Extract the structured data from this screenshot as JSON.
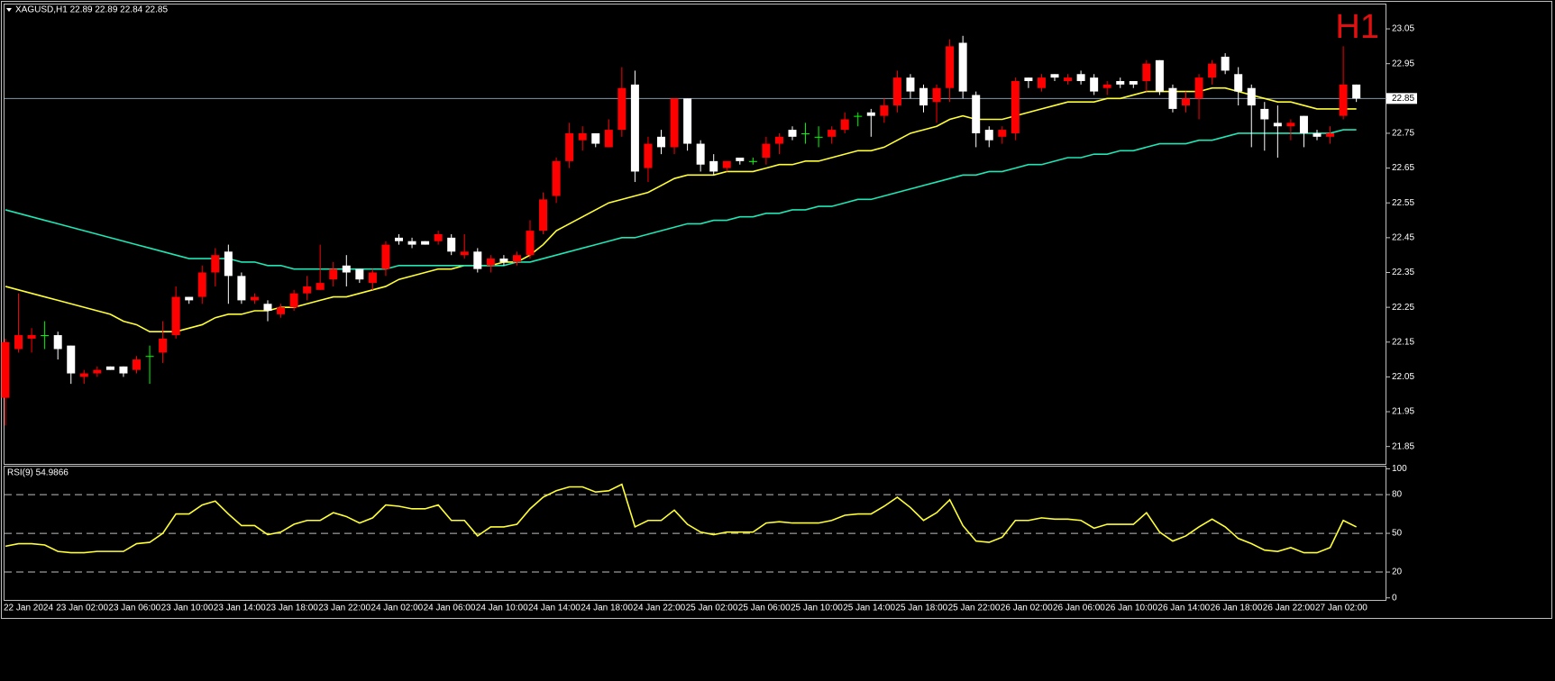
{
  "chart_data": [
    {
      "type": "candlestick",
      "title": "XAGUSD,H1  22.89 22.89 22.84 22.85",
      "badge": "H1",
      "categories": [
        "22 Jan 2024",
        null,
        null,
        null,
        "23 Jan 02:00",
        null,
        null,
        null,
        "23 Jan 06:00",
        null,
        null,
        null,
        "23 Jan 10:00",
        null,
        null,
        null,
        "23 Jan 14:00",
        null,
        null,
        null,
        "23 Jan 18:00",
        null,
        null,
        null,
        "23 Jan 22:00",
        null,
        null,
        null,
        "24 Jan 02:00",
        null,
        null,
        null,
        "24 Jan 06:00",
        null,
        null,
        null,
        "24 Jan 10:00",
        null,
        null,
        null,
        "24 Jan 14:00",
        null,
        null,
        null,
        "24 Jan 18:00",
        null,
        null,
        null,
        "24 Jan 22:00",
        null,
        null,
        null,
        "25 Jan 02:00",
        null,
        null,
        null,
        "25 Jan 06:00",
        null,
        null,
        null,
        "25 Jan 10:00",
        null,
        null,
        null,
        "25 Jan 14:00",
        null,
        null,
        null,
        "25 Jan 18:00",
        null,
        null,
        null,
        "25 Jan 22:00",
        null,
        null,
        null,
        "26 Jan 02:00",
        null,
        null,
        null,
        "26 Jan 06:00",
        null,
        null,
        null,
        "26 Jan 10:00",
        null,
        null,
        null,
        "26 Jan 14:00",
        null,
        null,
        null,
        "26 Jan 18:00",
        null,
        null,
        null,
        "26 Jan 22:00",
        null,
        null,
        null,
        "27 Jan 02:00",
        null,
        null,
        null
      ],
      "open": [
        21.99,
        22.13,
        22.16,
        22.17,
        22.17,
        22.14,
        22.05,
        22.06,
        22.08,
        22.08,
        22.07,
        22.11,
        22.12,
        22.17,
        22.28,
        22.28,
        22.35,
        22.41,
        22.34,
        22.27,
        22.26,
        22.23,
        22.25,
        22.29,
        22.3,
        22.33,
        22.37,
        22.36,
        22.32,
        22.36,
        22.45,
        22.44,
        22.44,
        22.44,
        22.45,
        22.4,
        22.41,
        22.37,
        22.39,
        22.38,
        22.4,
        22.47,
        22.57,
        22.67,
        22.73,
        22.75,
        22.71,
        22.76,
        22.89,
        22.65,
        22.74,
        22.71,
        22.85,
        22.72,
        22.67,
        22.65,
        22.68,
        22.67,
        22.68,
        22.72,
        22.76,
        22.75,
        22.74,
        22.74,
        22.76,
        22.8,
        22.81,
        22.8,
        22.83,
        22.91,
        22.88,
        22.84,
        22.88,
        23.01,
        22.86,
        22.76,
        22.74,
        22.75,
        22.91,
        22.88,
        22.92,
        22.9,
        22.92,
        22.91,
        22.88,
        22.9,
        22.9,
        22.9,
        22.96,
        22.88,
        22.83,
        22.85,
        22.91,
        22.97,
        22.92,
        22.88,
        22.82,
        22.78,
        22.77,
        22.8,
        22.75,
        22.74,
        22.8,
        22.89
      ],
      "high": [
        22.16,
        22.29,
        22.19,
        22.21,
        22.18,
        22.14,
        22.07,
        22.08,
        22.08,
        22.08,
        22.11,
        22.14,
        22.21,
        22.31,
        22.28,
        22.37,
        22.42,
        22.43,
        22.35,
        22.29,
        22.27,
        22.26,
        22.3,
        22.34,
        22.43,
        22.38,
        22.4,
        22.36,
        22.36,
        22.44,
        22.46,
        22.45,
        22.44,
        22.47,
        22.46,
        22.46,
        22.42,
        22.4,
        22.4,
        22.41,
        22.5,
        22.58,
        22.68,
        22.78,
        22.77,
        22.75,
        22.79,
        22.94,
        22.93,
        22.74,
        22.76,
        22.85,
        22.85,
        22.73,
        22.69,
        22.67,
        22.68,
        22.68,
        22.74,
        22.75,
        22.77,
        22.78,
        22.77,
        22.77,
        22.81,
        22.81,
        22.82,
        22.85,
        22.93,
        22.92,
        22.89,
        22.89,
        23.02,
        23.03,
        22.87,
        22.77,
        22.77,
        22.91,
        22.91,
        22.92,
        22.92,
        22.92,
        22.93,
        22.92,
        22.9,
        22.91,
        22.9,
        22.96,
        22.96,
        22.89,
        22.87,
        22.92,
        22.96,
        22.98,
        22.94,
        22.89,
        22.84,
        22.83,
        22.79,
        22.8,
        22.76,
        22.77,
        23.0,
        22.89
      ],
      "low": [
        21.91,
        22.12,
        22.12,
        22.13,
        22.1,
        22.03,
        22.03,
        22.05,
        22.07,
        22.05,
        22.06,
        22.03,
        22.09,
        22.16,
        22.26,
        22.26,
        22.31,
        22.26,
        22.26,
        22.26,
        22.21,
        22.22,
        22.24,
        22.27,
        22.3,
        22.31,
        22.31,
        22.32,
        22.3,
        22.34,
        22.43,
        22.42,
        22.43,
        22.43,
        22.4,
        22.39,
        22.35,
        22.35,
        22.37,
        22.37,
        22.39,
        22.46,
        22.55,
        22.65,
        22.7,
        22.71,
        22.71,
        22.74,
        22.61,
        22.61,
        22.69,
        22.69,
        22.7,
        22.64,
        22.63,
        22.64,
        22.66,
        22.66,
        22.66,
        22.69,
        22.73,
        22.72,
        22.71,
        22.72,
        22.75,
        22.77,
        22.74,
        22.78,
        22.81,
        22.85,
        22.81,
        22.78,
        22.84,
        22.85,
        22.71,
        22.71,
        22.72,
        22.73,
        22.88,
        22.87,
        22.9,
        22.89,
        22.89,
        22.86,
        22.86,
        22.88,
        22.88,
        22.87,
        22.86,
        22.81,
        22.81,
        22.79,
        22.89,
        22.92,
        22.83,
        22.71,
        22.7,
        22.68,
        22.73,
        22.71,
        22.73,
        22.72,
        22.79,
        22.84
      ],
      "close": [
        22.15,
        22.17,
        22.17,
        22.17,
        22.13,
        22.06,
        22.06,
        22.07,
        22.07,
        22.06,
        22.1,
        22.11,
        22.16,
        22.28,
        22.27,
        22.35,
        22.4,
        22.34,
        22.27,
        22.28,
        22.24,
        22.25,
        22.29,
        22.31,
        22.32,
        22.36,
        22.35,
        22.33,
        22.35,
        22.43,
        22.44,
        22.43,
        22.43,
        22.46,
        22.41,
        22.41,
        22.36,
        22.39,
        22.38,
        22.4,
        22.47,
        22.56,
        22.67,
        22.75,
        22.75,
        22.72,
        22.76,
        22.88,
        22.64,
        22.72,
        22.71,
        22.85,
        22.72,
        22.66,
        22.64,
        22.67,
        22.67,
        22.67,
        22.72,
        22.74,
        22.74,
        22.75,
        22.74,
        22.76,
        22.79,
        22.8,
        22.8,
        22.83,
        22.91,
        22.87,
        22.83,
        22.88,
        23.0,
        22.87,
        22.75,
        22.73,
        22.76,
        22.9,
        22.9,
        22.91,
        22.91,
        22.91,
        22.9,
        22.87,
        22.89,
        22.89,
        22.89,
        22.95,
        22.87,
        22.82,
        22.85,
        22.91,
        22.95,
        22.93,
        22.87,
        22.83,
        22.79,
        22.77,
        22.78,
        22.75,
        22.74,
        22.75,
        22.89,
        22.85
      ],
      "up_color": "#ff0000",
      "down_color": "#ffffff",
      "doji_color": "#00ff00",
      "series": [
        {
          "color": "#ffff33",
          "values": [
            22.31,
            22.3,
            22.29,
            22.28,
            22.27,
            22.26,
            22.25,
            22.24,
            22.23,
            22.21,
            22.2,
            22.18,
            22.18,
            22.18,
            22.19,
            22.2,
            22.22,
            22.23,
            22.23,
            22.24,
            22.24,
            22.25,
            22.25,
            22.26,
            22.27,
            22.28,
            22.28,
            22.29,
            22.3,
            22.31,
            22.33,
            22.34,
            22.35,
            22.36,
            22.36,
            22.37,
            22.37,
            22.37,
            22.38,
            22.38,
            22.4,
            22.43,
            22.47,
            22.49,
            22.51,
            22.53,
            22.55,
            22.56,
            22.57,
            22.58,
            22.6,
            22.62,
            22.63,
            22.63,
            22.63,
            22.64,
            22.64,
            22.64,
            22.65,
            22.66,
            22.66,
            22.67,
            22.67,
            22.68,
            22.69,
            22.7,
            22.7,
            22.71,
            22.73,
            22.75,
            22.76,
            22.77,
            22.79,
            22.8,
            22.79,
            22.79,
            22.79,
            22.8,
            22.81,
            22.82,
            22.83,
            22.84,
            22.84,
            22.84,
            22.85,
            22.85,
            22.86,
            22.87,
            22.87,
            22.87,
            22.87,
            22.87,
            22.88,
            22.88,
            22.87,
            22.86,
            22.85,
            22.84,
            22.84,
            22.83,
            22.82,
            22.82,
            22.82,
            22.82
          ]
        },
        {
          "color": "#1ee6b4",
          "values": [
            22.53,
            22.52,
            22.51,
            22.5,
            22.49,
            22.48,
            22.47,
            22.46,
            22.45,
            22.44,
            22.43,
            22.42,
            22.41,
            22.4,
            22.39,
            22.39,
            22.39,
            22.39,
            22.38,
            22.38,
            22.37,
            22.37,
            22.36,
            22.36,
            22.36,
            22.36,
            22.36,
            22.36,
            22.36,
            22.36,
            22.37,
            22.37,
            22.37,
            22.37,
            22.37,
            22.37,
            22.37,
            22.37,
            22.37,
            22.38,
            22.38,
            22.39,
            22.4,
            22.41,
            22.42,
            22.43,
            22.44,
            22.45,
            22.45,
            22.46,
            22.47,
            22.48,
            22.49,
            22.49,
            22.5,
            22.5,
            22.51,
            22.51,
            22.52,
            22.52,
            22.53,
            22.53,
            22.54,
            22.54,
            22.55,
            22.56,
            22.56,
            22.57,
            22.58,
            22.59,
            22.6,
            22.61,
            22.62,
            22.63,
            22.63,
            22.64,
            22.64,
            22.65,
            22.66,
            22.66,
            22.67,
            22.68,
            22.68,
            22.69,
            22.69,
            22.7,
            22.7,
            22.71,
            22.72,
            22.72,
            22.72,
            22.73,
            22.73,
            22.74,
            22.75,
            22.75,
            22.75,
            22.75,
            22.75,
            22.75,
            22.75,
            22.75,
            22.76,
            22.76
          ]
        }
      ],
      "ylim": [
        21.8,
        23.12
      ],
      "yticks": [
        23.05,
        22.95,
        22.85,
        22.75,
        22.65,
        22.55,
        22.45,
        22.35,
        22.25,
        22.15,
        22.05,
        21.95,
        21.85
      ],
      "last_price": 22.85
    },
    {
      "type": "line",
      "title": "RSI(9) 54.9866",
      "series": [
        {
          "color": "#ffff33",
          "values": [
            40,
            42,
            42,
            41,
            36,
            35,
            35,
            36,
            36,
            36,
            42,
            43,
            50,
            65,
            65,
            72,
            75,
            65,
            56,
            56,
            49,
            51,
            57,
            60,
            60,
            66,
            63,
            58,
            62,
            72,
            71,
            69,
            69,
            72,
            60,
            60,
            48,
            55,
            55,
            57,
            69,
            78,
            83,
            86,
            86,
            82,
            83,
            88,
            55,
            60,
            60,
            68,
            57,
            51,
            49,
            51,
            51,
            51,
            58,
            59,
            58,
            58,
            58,
            60,
            64,
            65,
            65,
            71,
            78,
            70,
            60,
            66,
            76,
            56,
            44,
            43,
            47,
            60,
            60,
            62,
            61,
            61,
            60,
            54,
            57,
            57,
            57,
            66,
            51,
            44,
            48,
            55,
            61,
            55,
            46,
            42,
            37,
            36,
            39,
            35,
            35,
            39,
            60,
            54.9866
          ]
        }
      ],
      "ylim": [
        -1.6,
        101.7
      ],
      "yticks": [
        100,
        80,
        50,
        20,
        0
      ],
      "levels": [
        80,
        50,
        20
      ]
    }
  ]
}
